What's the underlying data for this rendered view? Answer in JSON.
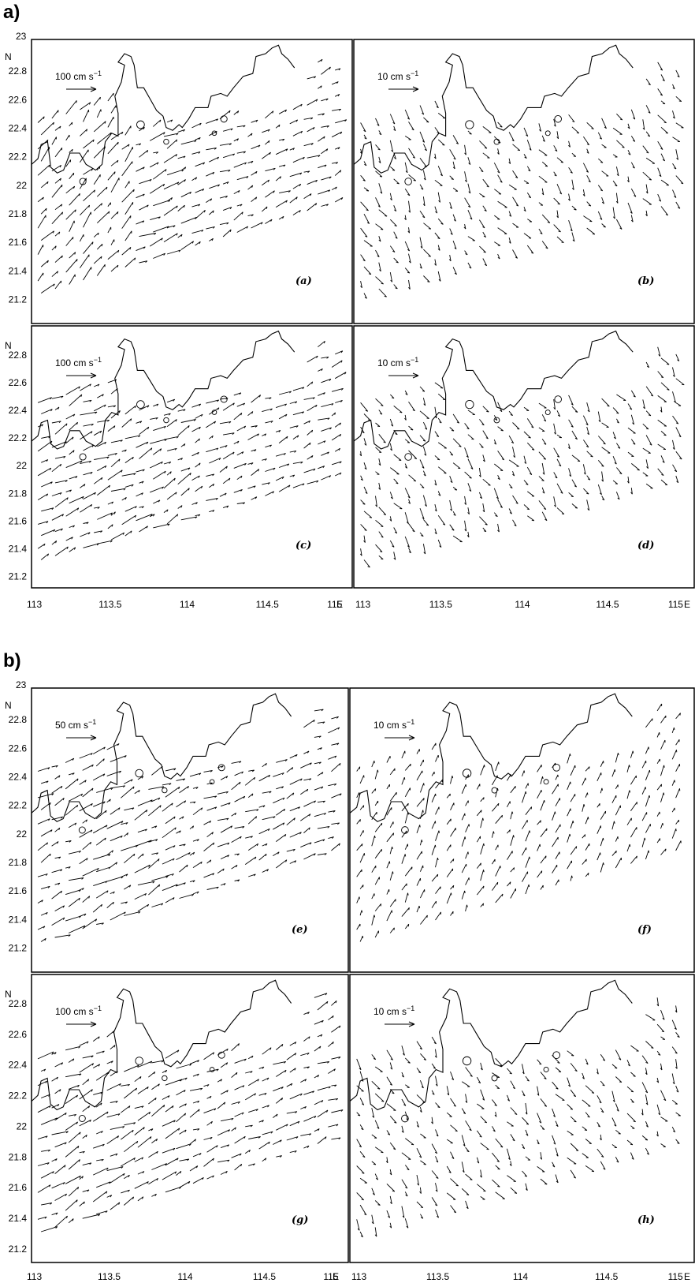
{
  "groups": [
    {
      "label": "a)",
      "x_ticks": [
        "113",
        "113.5",
        "114",
        "114.5",
        "115"
      ],
      "x_ticks_right": [
        "113.5",
        "114",
        "114.5",
        "115"
      ],
      "right_shared_tick": "113",
      "y_ticks": [
        "23",
        "22.8",
        "22.6",
        "22.4",
        "22.2",
        "22",
        "21.8",
        "21.6",
        "21.4",
        "21.2"
      ],
      "y_ticks_lower": [
        "22.8",
        "22.6",
        "22.4",
        "22.2",
        "22",
        "21.8",
        "21.6",
        "21.4",
        "21.2"
      ],
      "axis_east": "E",
      "axis_north": "N",
      "panels": [
        {
          "label": "(a)",
          "scale_label": "100 cm s",
          "scale_exp": "−1"
        },
        {
          "label": "(b)",
          "scale_label": "10 cm s",
          "scale_exp": "−1"
        },
        {
          "label": "(c)",
          "scale_label": "100 cm s",
          "scale_exp": "−1"
        },
        {
          "label": "(d)",
          "scale_label": "10 cm s",
          "scale_exp": "−1"
        }
      ]
    },
    {
      "label": "b)",
      "x_ticks": [
        "113",
        "113.5",
        "114",
        "114.5",
        "115"
      ],
      "x_ticks_right": [
        "113.5",
        "114",
        "114.5",
        "115"
      ],
      "right_shared_tick": "113",
      "y_ticks": [
        "23",
        "22.8",
        "22.6",
        "22.4",
        "22.2",
        "22",
        "21.8",
        "21.6",
        "21.4",
        "21.2"
      ],
      "y_ticks_lower": [
        "22.8",
        "22.6",
        "22.4",
        "22.2",
        "22",
        "21.8",
        "21.6",
        "21.4",
        "21.2"
      ],
      "axis_east": "E",
      "axis_north": "N",
      "panels": [
        {
          "label": "(e)",
          "scale_label": "50 cm s",
          "scale_exp": "−1"
        },
        {
          "label": "(f)",
          "scale_label": "10 cm s",
          "scale_exp": "−1"
        },
        {
          "label": "(g)",
          "scale_label": "100 cm s",
          "scale_exp": "−1"
        },
        {
          "label": "(h)",
          "scale_label": "10 cm s",
          "scale_exp": "−1"
        }
      ]
    }
  ],
  "colors": {
    "ink": "#000000",
    "background": "#ffffff"
  }
}
